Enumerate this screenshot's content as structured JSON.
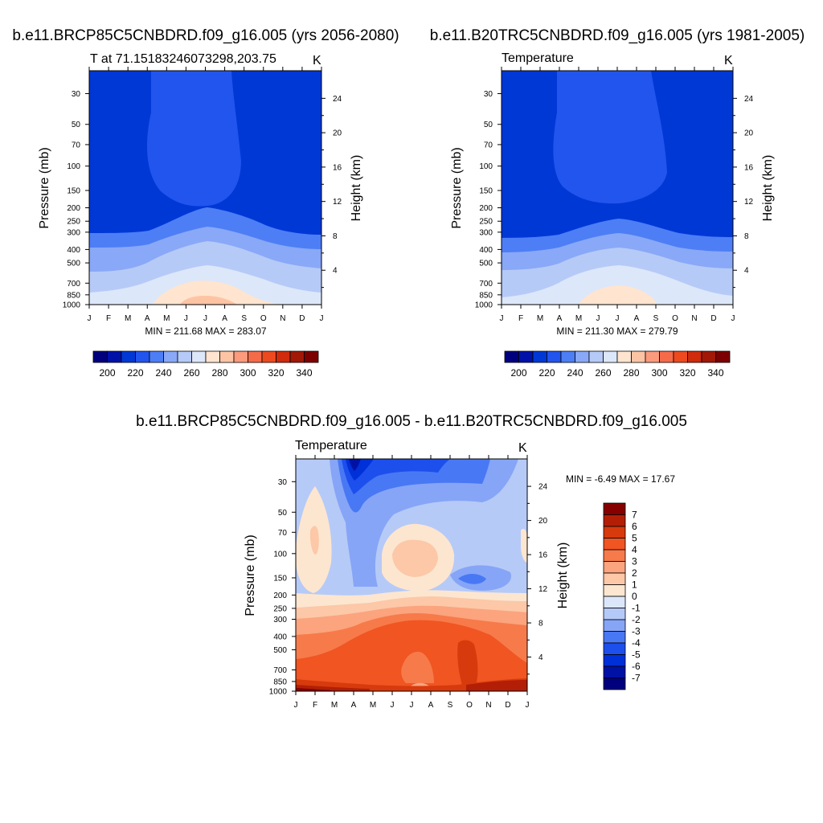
{
  "chart_data": [
    {
      "type": "heatmap",
      "panel": "top-left",
      "title": "b.e11.BRCP85C5CNBDRD.f09_g16.005 (yrs 2056-2080)",
      "subtitle_left": "T at 71.15183246073298,203.75",
      "subtitle_right": "K",
      "ylabel": "Pressure (mb)",
      "ylabel_right": "Height (km)",
      "x_ticks": [
        "J",
        "F",
        "M",
        "A",
        "M",
        "J",
        "J",
        "A",
        "S",
        "O",
        "N",
        "D",
        "J"
      ],
      "y_ticks": [
        30,
        50,
        70,
        100,
        150,
        200,
        250,
        300,
        400,
        500,
        700,
        850,
        1000
      ],
      "y_right_ticks": [
        24,
        20,
        16,
        12,
        8,
        4
      ],
      "ylim": [
        1000,
        20
      ],
      "min_max_text": "MIN = 211.68 MAX = 283.07",
      "min": 211.68,
      "max": 283.07,
      "contour_levels": [
        200,
        210,
        220,
        230,
        240,
        250,
        260,
        270,
        280,
        290,
        300,
        310,
        320,
        330,
        340
      ],
      "colorbar_labels": [
        "200",
        "220",
        "240",
        "260",
        "280",
        "300",
        "320",
        "340"
      ],
      "colorbar_orientation": "horizontal",
      "tropopause_kink": {
        "month": [
          0,
          3,
          5.8,
          8,
          12
        ],
        "pressure_mb": [
          320,
          330,
          210,
          300,
          330
        ]
      }
    },
    {
      "type": "heatmap",
      "panel": "top-right",
      "title": "b.e11.B20TRC5CNBDRD.f09_g16.005 (yrs 1981-2005)",
      "subtitle_left": "Temperature",
      "subtitle_right": "K",
      "ylabel": "Pressure (mb)",
      "ylabel_right": "Height (km)",
      "x_ticks": [
        "J",
        "F",
        "M",
        "A",
        "M",
        "J",
        "J",
        "A",
        "S",
        "O",
        "N",
        "D",
        "J"
      ],
      "y_ticks": [
        30,
        50,
        70,
        100,
        150,
        200,
        250,
        300,
        400,
        500,
        700,
        850,
        1000
      ],
      "y_right_ticks": [
        24,
        20,
        16,
        12,
        8,
        4
      ],
      "ylim": [
        1000,
        20
      ],
      "min_max_text": "MIN = 211.30 MAX = 279.79",
      "min": 211.3,
      "max": 279.79,
      "contour_levels": [
        200,
        210,
        220,
        230,
        240,
        250,
        260,
        270,
        280,
        290,
        300,
        310,
        320,
        330,
        340
      ],
      "colorbar_labels": [
        "200",
        "220",
        "240",
        "260",
        "280",
        "300",
        "320",
        "340"
      ],
      "colorbar_orientation": "horizontal"
    },
    {
      "type": "heatmap",
      "panel": "bottom",
      "title": "b.e11.BRCP85C5CNBDRD.f09_g16.005 - b.e11.B20TRC5CNBDRD.f09_g16.005",
      "subtitle_left": "Temperature",
      "subtitle_right": "K",
      "ylabel": "Pressure (mb)",
      "ylabel_right": "Height (km)",
      "x_ticks": [
        "J",
        "F",
        "M",
        "A",
        "M",
        "J",
        "J",
        "A",
        "S",
        "O",
        "N",
        "D",
        "J"
      ],
      "y_ticks": [
        30,
        50,
        70,
        100,
        150,
        200,
        250,
        300,
        400,
        500,
        700,
        850,
        1000
      ],
      "y_right_ticks": [
        24,
        20,
        16,
        12,
        8,
        4
      ],
      "ylim": [
        1000,
        20
      ],
      "min_max_text": "MIN =  -6.49 MAX =  17.67",
      "min": -6.49,
      "max": 17.67,
      "contour_levels": [
        -7,
        -6,
        -5,
        -4,
        -3,
        -2,
        -1,
        0,
        1,
        2,
        3,
        4,
        5,
        6,
        7
      ],
      "colorbar_labels": [
        "7",
        "6",
        "5",
        "4",
        "3",
        "2",
        "1",
        "0",
        "-1",
        "-2",
        "-3",
        "-4",
        "-5",
        "-6",
        "-7"
      ],
      "colorbar_orientation": "vertical"
    }
  ],
  "colors": {
    "temperature_scale": [
      "#00007f",
      "#0011a8",
      "#0038d6",
      "#2255ee",
      "#4d7ef5",
      "#89a8f7",
      "#b6caf7",
      "#dce7fa",
      "#ffe4cf",
      "#fdc4a4",
      "#fb9a7c",
      "#f56b4a",
      "#ee4a1f",
      "#cf2b0c",
      "#a21807",
      "#7c0000"
    ],
    "difference_scale": [
      "#00007f",
      "#0012a5",
      "#0030d8",
      "#1d4fed",
      "#4978f4",
      "#86a5f7",
      "#b5c9f8",
      "#dce6fa",
      "#fde6d0",
      "#fcc8a8",
      "#fba47e",
      "#f77a4a",
      "#f05522",
      "#d73a0c",
      "#b21f06",
      "#860000"
    ]
  }
}
